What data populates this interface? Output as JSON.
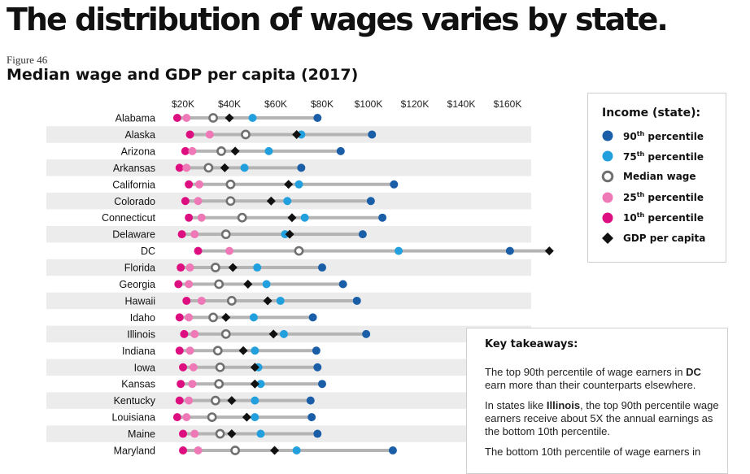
{
  "headline": "The distribution of wages varies by state.",
  "figure_label": "Figure 46",
  "chart_data": {
    "type": "dot-range",
    "title": "Median wage and GDP per capita (2017)",
    "x_ticks": [
      20000,
      40000,
      60000,
      80000,
      100000,
      120000,
      140000,
      160000
    ],
    "x_tick_labels": [
      "$20K",
      "$40K",
      "$60K",
      "$80K",
      "$100K",
      "$120K",
      "$140K",
      "$160K"
    ],
    "colors": {
      "p90": "#1a5ea8",
      "p75": "#22a0de",
      "median": "#707070",
      "p25": "#ee79b6",
      "p10": "#dd0f80",
      "gdp": "#111111",
      "range_line": "#b4b4b4",
      "row_band": "#ececec"
    },
    "states": [
      {
        "name": "Alabama",
        "p10": 17500,
        "p25": 21500,
        "median": 33000,
        "p75": 50000,
        "p90": 78000,
        "gdp": 40000
      },
      {
        "name": "Alaska",
        "p10": 23000,
        "p25": 31500,
        "median": 47000,
        "p75": 71000,
        "p90": 101500,
        "gdp": 69000
      },
      {
        "name": "Arizona",
        "p10": 21000,
        "p25": 24000,
        "median": 36500,
        "p75": 57000,
        "p90": 88000,
        "gdp": 42500
      },
      {
        "name": "Arkansas",
        "p10": 18500,
        "p25": 21500,
        "median": 31000,
        "p75": 46500,
        "p90": 71000,
        "gdp": 38000
      },
      {
        "name": "California",
        "p10": 22500,
        "p25": 27000,
        "median": 40500,
        "p75": 70000,
        "p90": 111000,
        "gdp": 65500
      },
      {
        "name": "Colorado",
        "p10": 21000,
        "p25": 26500,
        "median": 40500,
        "p75": 65000,
        "p90": 101000,
        "gdp": 58000
      },
      {
        "name": "Connecticut",
        "p10": 22500,
        "p25": 28000,
        "median": 45500,
        "p75": 72500,
        "p90": 106000,
        "gdp": 67000
      },
      {
        "name": "Delaware",
        "p10": 19500,
        "p25": 25000,
        "median": 38500,
        "p75": 64000,
        "p90": 97500,
        "gdp": 66000
      },
      {
        "name": "DC",
        "p10": 26500,
        "p25": 40000,
        "median": 70000,
        "p75": 113000,
        "p90": 161000,
        "gdp": 178000
      },
      {
        "name": "Florida",
        "p10": 19000,
        "p25": 23000,
        "median": 34000,
        "p75": 52000,
        "p90": 80000,
        "gdp": 41500
      },
      {
        "name": "Georgia",
        "p10": 18000,
        "p25": 22500,
        "median": 35500,
        "p75": 56000,
        "p90": 89000,
        "gdp": 48000
      },
      {
        "name": "Hawaii",
        "p10": 21500,
        "p25": 28000,
        "median": 41000,
        "p75": 62000,
        "p90": 95000,
        "gdp": 56500
      },
      {
        "name": "Idaho",
        "p10": 18500,
        "p25": 22500,
        "median": 33000,
        "p75": 50500,
        "p90": 76000,
        "gdp": 38500
      },
      {
        "name": "Illinois",
        "p10": 20500,
        "p25": 25000,
        "median": 38500,
        "p75": 63500,
        "p90": 99000,
        "gdp": 59000
      },
      {
        "name": "Indiana",
        "p10": 18500,
        "p25": 23000,
        "median": 35000,
        "p75": 51000,
        "p90": 77500,
        "gdp": 46000
      },
      {
        "name": "Iowa",
        "p10": 20000,
        "p25": 24500,
        "median": 36000,
        "p75": 52500,
        "p90": 78000,
        "gdp": 51000
      },
      {
        "name": "Kansas",
        "p10": 19000,
        "p25": 24000,
        "median": 35500,
        "p75": 53500,
        "p90": 80000,
        "gdp": 51000
      },
      {
        "name": "Kentucky",
        "p10": 18500,
        "p25": 22500,
        "median": 34000,
        "p75": 51000,
        "p90": 75000,
        "gdp": 41000
      },
      {
        "name": "Louisiana",
        "p10": 17500,
        "p25": 21500,
        "median": 32500,
        "p75": 51000,
        "p90": 75500,
        "gdp": 47500
      },
      {
        "name": "Maine",
        "p10": 20000,
        "p25": 25000,
        "median": 36000,
        "p75": 53500,
        "p90": 78000,
        "gdp": 41000
      },
      {
        "name": "Maryland",
        "p10": 20000,
        "p25": 26500,
        "median": 42500,
        "p75": 69000,
        "p90": 110500,
        "gdp": 59500
      }
    ]
  },
  "legend": {
    "title": "Income (state):",
    "items": [
      {
        "key": "p90",
        "label": "90th percentile",
        "sup": "th",
        "num": "90",
        "rest": " percentile"
      },
      {
        "key": "p75",
        "label": "75th percentile",
        "sup": "th",
        "num": "75",
        "rest": " percentile"
      },
      {
        "key": "median",
        "label": "Median wage"
      },
      {
        "key": "p25",
        "label": "25th percentile",
        "sup": "th",
        "num": "25",
        "rest": " percentile"
      },
      {
        "key": "p10",
        "label": "10th percentile",
        "sup": "th",
        "num": "10",
        "rest": " percentile"
      },
      {
        "key": "gdp",
        "label": "GDP per capita"
      }
    ]
  },
  "takeaways": {
    "title": "Key takeaways:",
    "p1_pre": "The top 90th percentile of wage earners in ",
    "p1_bold": "DC",
    "p1_post": " earn more than their counterparts elsewhere.",
    "p2_pre": "In states like ",
    "p2_bold": "Illinois",
    "p2_post": ", the top 90th percentile wage earners receive about 5X the annual earnings as the bottom 10th percentile.",
    "p3_pre": "The bottom 10th percentile of wage earners in"
  }
}
